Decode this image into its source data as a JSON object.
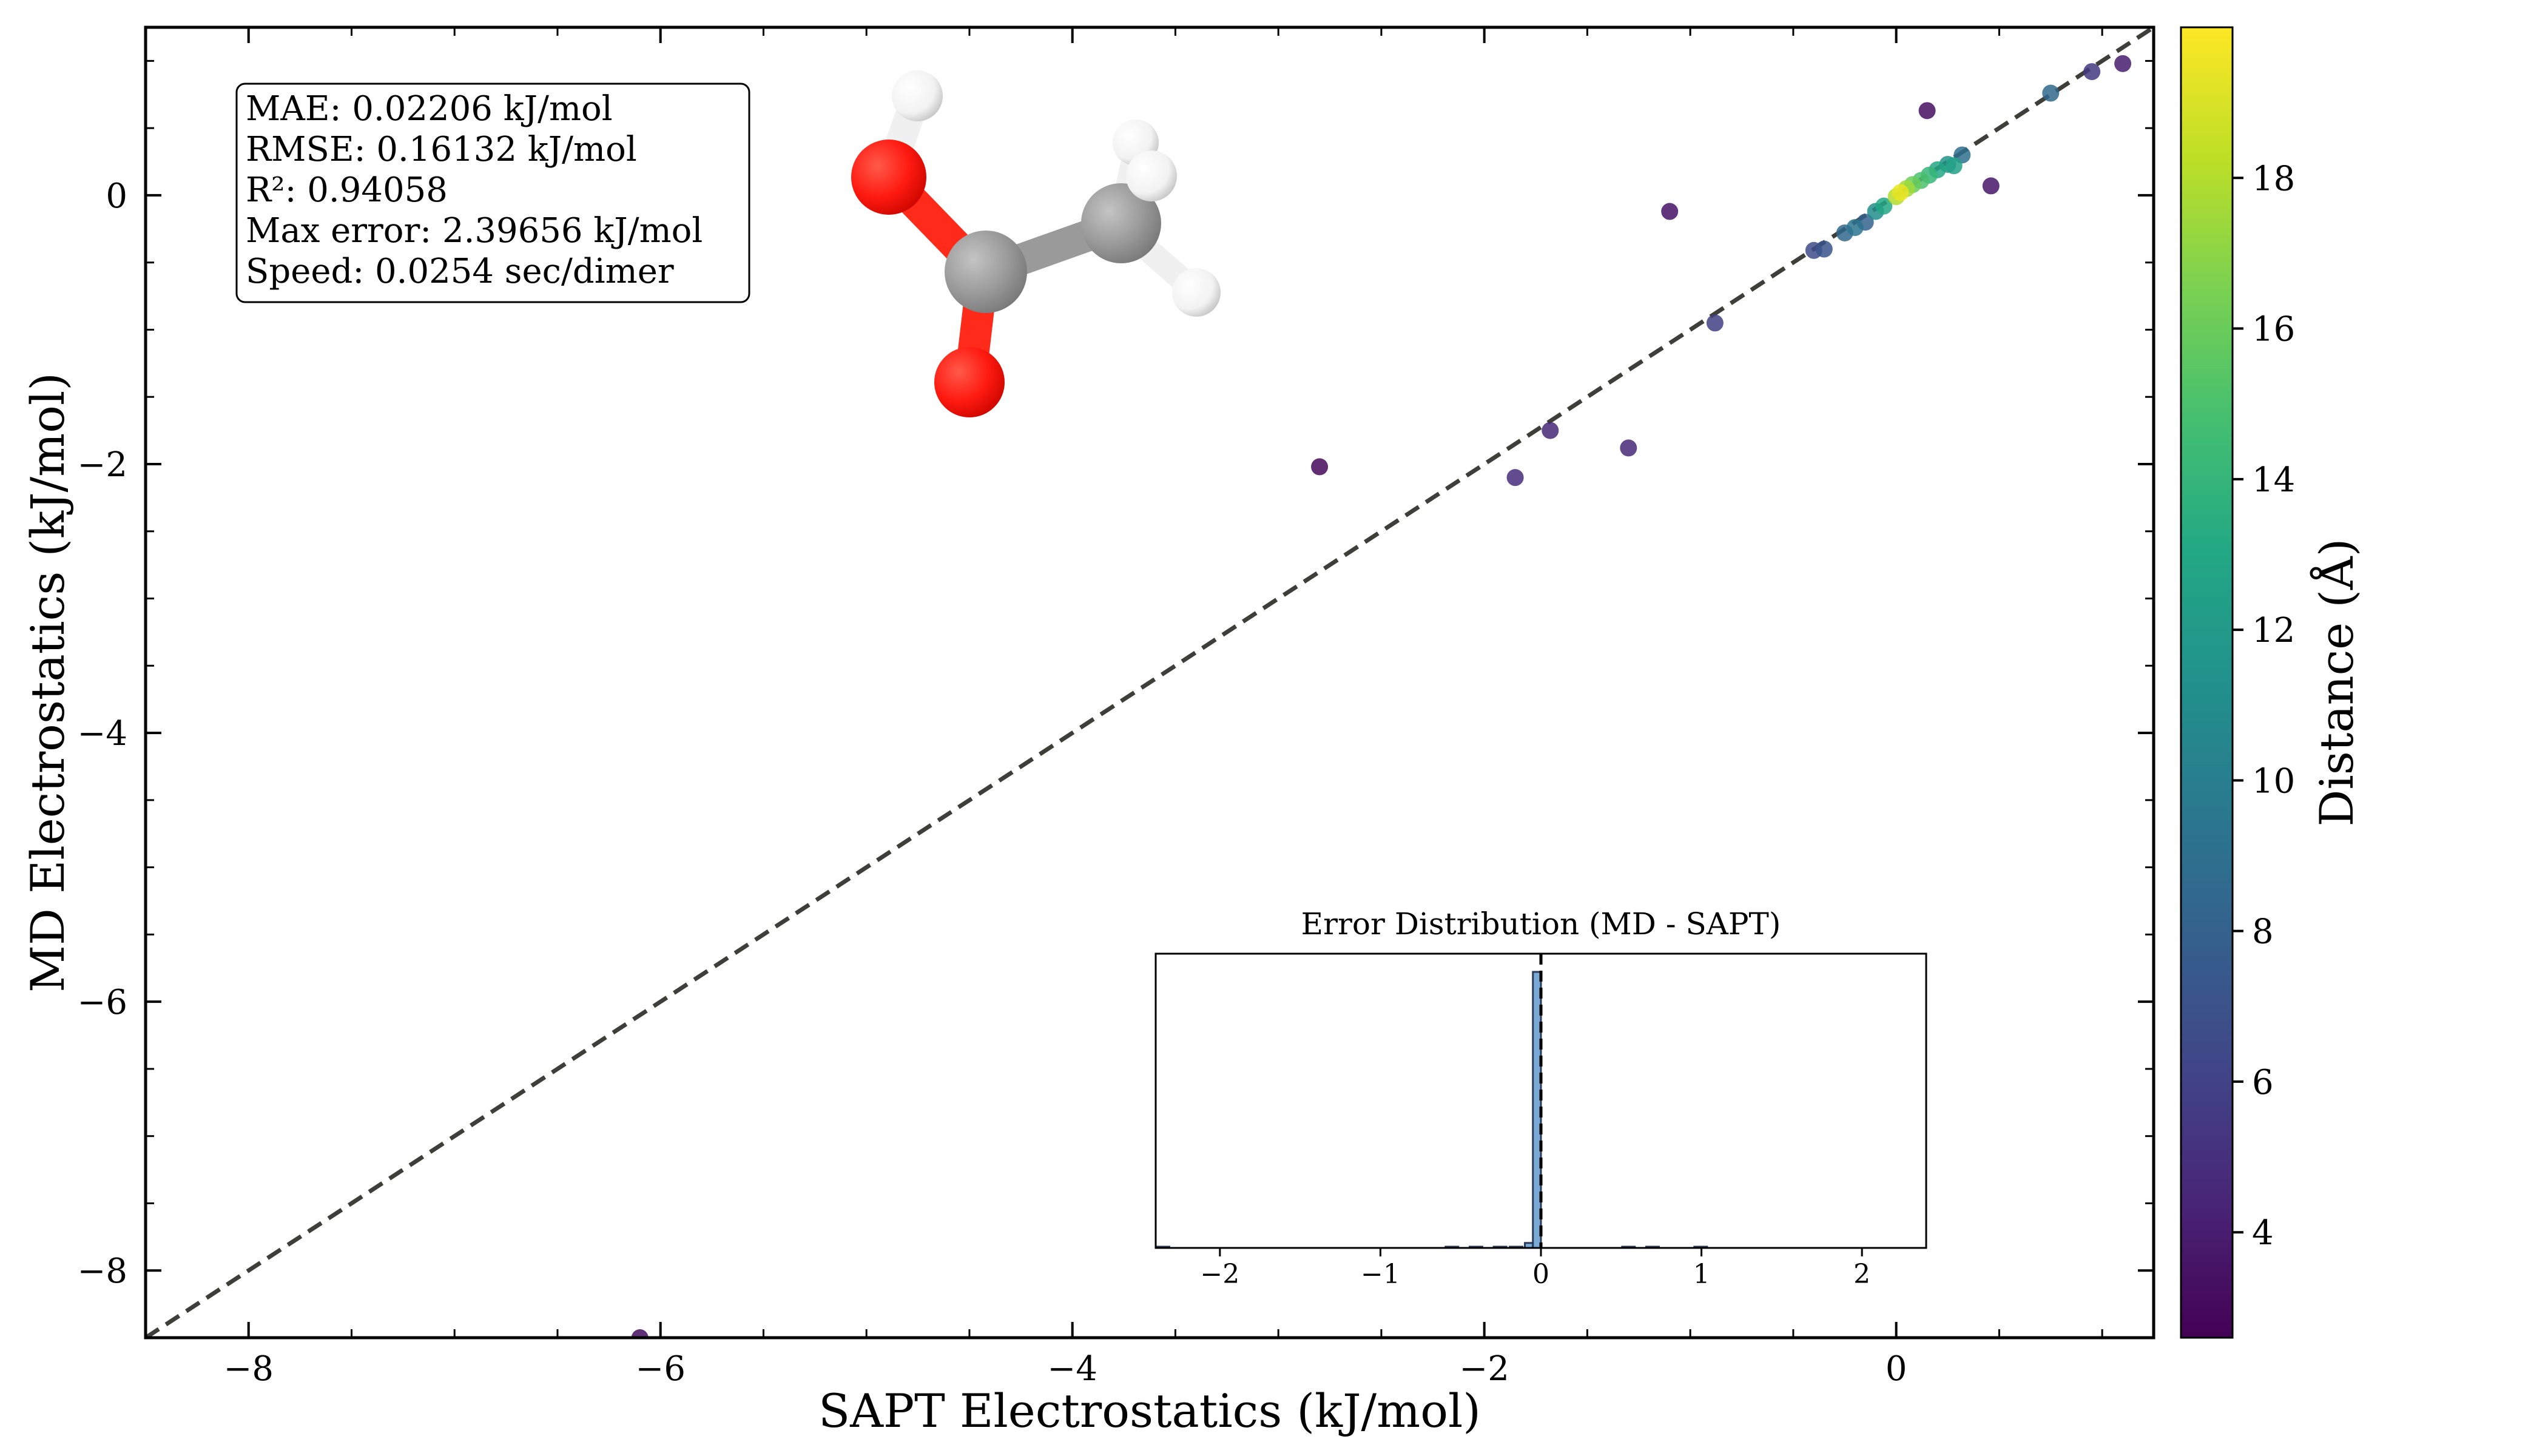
{
  "chart_data": {
    "type": "scatter",
    "xlabel": "SAPT Electrostatics (kJ/mol)",
    "ylabel": "MD Electrostatics (kJ/mol)",
    "xlim": [
      -8.5,
      1.25
    ],
    "ylim": [
      -8.5,
      1.25
    ],
    "xticks": [
      -8,
      -6,
      -4,
      -2,
      0
    ],
    "yticks": [
      -8,
      -6,
      -4,
      -2,
      0
    ],
    "grid": false,
    "reference_line": "y = x (dashed)",
    "colorbar": {
      "label": "Distance (Å)",
      "colormap": "viridis",
      "range": [
        2.6,
        20
      ],
      "ticks": [
        4,
        6,
        8,
        10,
        12,
        14,
        16,
        18
      ]
    },
    "stats_box": [
      "MAE: 0.02206 kJ/mol",
      "RMSE: 0.16132 kJ/mol",
      "R²: 0.94058",
      "Max error: 2.39656 kJ/mol",
      "Speed: 0.0254 sec/dimer"
    ],
    "series": [
      {
        "points": [
          {
            "x": -6.1,
            "y": -8.5,
            "distance": 3.2
          },
          {
            "x": -2.8,
            "y": -2.02,
            "distance": 3.0
          },
          {
            "x": -1.85,
            "y": -2.1,
            "distance": 4.8
          },
          {
            "x": -1.68,
            "y": -1.75,
            "distance": 4.5
          },
          {
            "x": -1.3,
            "y": -1.88,
            "distance": 4.6
          },
          {
            "x": -1.1,
            "y": -0.12,
            "distance": 3.5
          },
          {
            "x": -0.88,
            "y": -0.95,
            "distance": 5.8
          },
          {
            "x": 0.15,
            "y": 0.63,
            "distance": 3.3
          },
          {
            "x": 0.46,
            "y": 0.07,
            "distance": 3.6
          },
          {
            "x": 0.75,
            "y": 0.76,
            "distance": 8.5
          },
          {
            "x": 0.95,
            "y": 0.92,
            "distance": 5.5
          },
          {
            "x": 1.1,
            "y": 0.98,
            "distance": 4.0
          },
          {
            "x": -0.4,
            "y": -0.41,
            "distance": 6.5
          },
          {
            "x": -0.35,
            "y": -0.4,
            "distance": 7.2
          },
          {
            "x": -0.25,
            "y": -0.28,
            "distance": 8.5
          },
          {
            "x": -0.2,
            "y": -0.24,
            "distance": 9.3
          },
          {
            "x": -0.15,
            "y": -0.2,
            "distance": 8.0
          },
          {
            "x": -0.1,
            "y": -0.12,
            "distance": 11.0
          },
          {
            "x": -0.06,
            "y": -0.08,
            "distance": 13.0
          },
          {
            "x": 0.0,
            "y": -0.01,
            "distance": 18.0
          },
          {
            "x": 0.02,
            "y": 0.02,
            "distance": 19.5
          },
          {
            "x": 0.05,
            "y": 0.05,
            "distance": 17.5
          },
          {
            "x": 0.08,
            "y": 0.08,
            "distance": 16.0
          },
          {
            "x": 0.12,
            "y": 0.11,
            "distance": 15.0
          },
          {
            "x": 0.16,
            "y": 0.15,
            "distance": 14.0
          },
          {
            "x": 0.2,
            "y": 0.19,
            "distance": 13.0
          },
          {
            "x": 0.25,
            "y": 0.23,
            "distance": 11.5
          },
          {
            "x": 0.28,
            "y": 0.22,
            "distance": 12.5
          },
          {
            "x": 0.32,
            "y": 0.3,
            "distance": 9.0
          }
        ]
      }
    ],
    "inset": {
      "title": "Error Distribution (MD - SAPT)",
      "type": "histogram",
      "xlim": [
        -2.4,
        2.4
      ],
      "xticks": [
        -2,
        -1,
        0,
        1,
        2
      ],
      "bin_width": 0.05,
      "bars": [
        {
          "x": -0.075,
          "height": 0.018
        },
        {
          "x": -0.025,
          "height": 1.0
        },
        {
          "x": 0.025,
          "height": 0.0
        }
      ],
      "baseline_dashes": [
        -2.4,
        -0.6,
        -0.45,
        -0.3,
        -0.2,
        0.5,
        0.65,
        0.95
      ],
      "reference_line_x": 0
    },
    "colors": {
      "reference_line": "#3f3f3a",
      "hist_bar": "#7aaad6",
      "hist_edge": "#2a3a5a"
    },
    "molecule": {
      "description": "acetic acid ball-and-stick",
      "atoms": [
        {
          "element": "H",
          "color": "#ffffff"
        },
        {
          "element": "O",
          "color": "#ff1a10"
        },
        {
          "element": "C",
          "color": "#9a9a9a"
        },
        {
          "element": "O",
          "color": "#ff1a10"
        },
        {
          "element": "C",
          "color": "#9a9a9a"
        },
        {
          "element": "H",
          "color": "#ffffff"
        },
        {
          "element": "H",
          "color": "#ffffff"
        },
        {
          "element": "H",
          "color": "#ffffff"
        }
      ]
    }
  }
}
